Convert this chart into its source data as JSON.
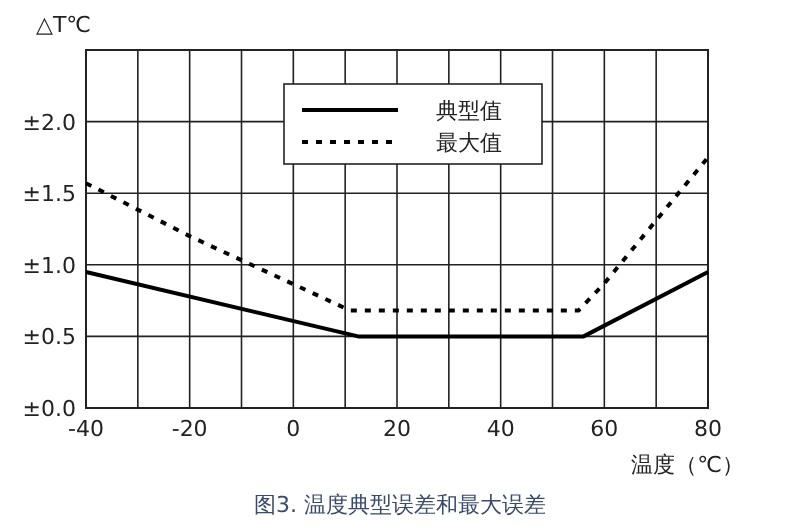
{
  "chart_data": {
    "type": "line",
    "xlabel": "温度（℃）",
    "ylabel": "△T℃",
    "annotations": [
      "图3. 温度典型误差和最大误差"
    ],
    "series": [
      {
        "name": "典型值",
        "color": "#000000",
        "line_style": "solid",
        "x": [
          -40,
          12.5,
          56,
          80
        ],
        "values": [
          0.95,
          0.5,
          0.5,
          0.95
        ]
      },
      {
        "name": "最大值",
        "color": "#000000",
        "line_style": "dashed",
        "x": [
          -40,
          -20,
          11,
          55,
          60,
          80
        ],
        "values": [
          1.57,
          1.2,
          0.68,
          0.68,
          0.87,
          1.75
        ]
      }
    ],
    "xlim": [
      -40,
      80
    ],
    "ylim": [
      0,
      2.5
    ],
    "xticks": [
      -40,
      {
        "value": -30,
        "label": null
      },
      -20,
      {
        "value": -10,
        "label": null
      },
      0,
      {
        "value": 10,
        "label": null
      },
      20,
      {
        "value": 30,
        "label": null
      },
      40,
      {
        "value": 50,
        "label": null
      },
      60,
      {
        "value": 70,
        "label": null
      },
      80
    ],
    "yticks": [
      {
        "value": 0,
        "label": "±0.0"
      },
      {
        "value": 0.5,
        "label": "±0.5"
      },
      {
        "value": 1,
        "label": "±1.0"
      },
      {
        "value": 1.5,
        "label": "±1.5"
      },
      {
        "value": 2,
        "label": "±2.0"
      }
    ],
    "grid": true,
    "legend": "top"
  }
}
